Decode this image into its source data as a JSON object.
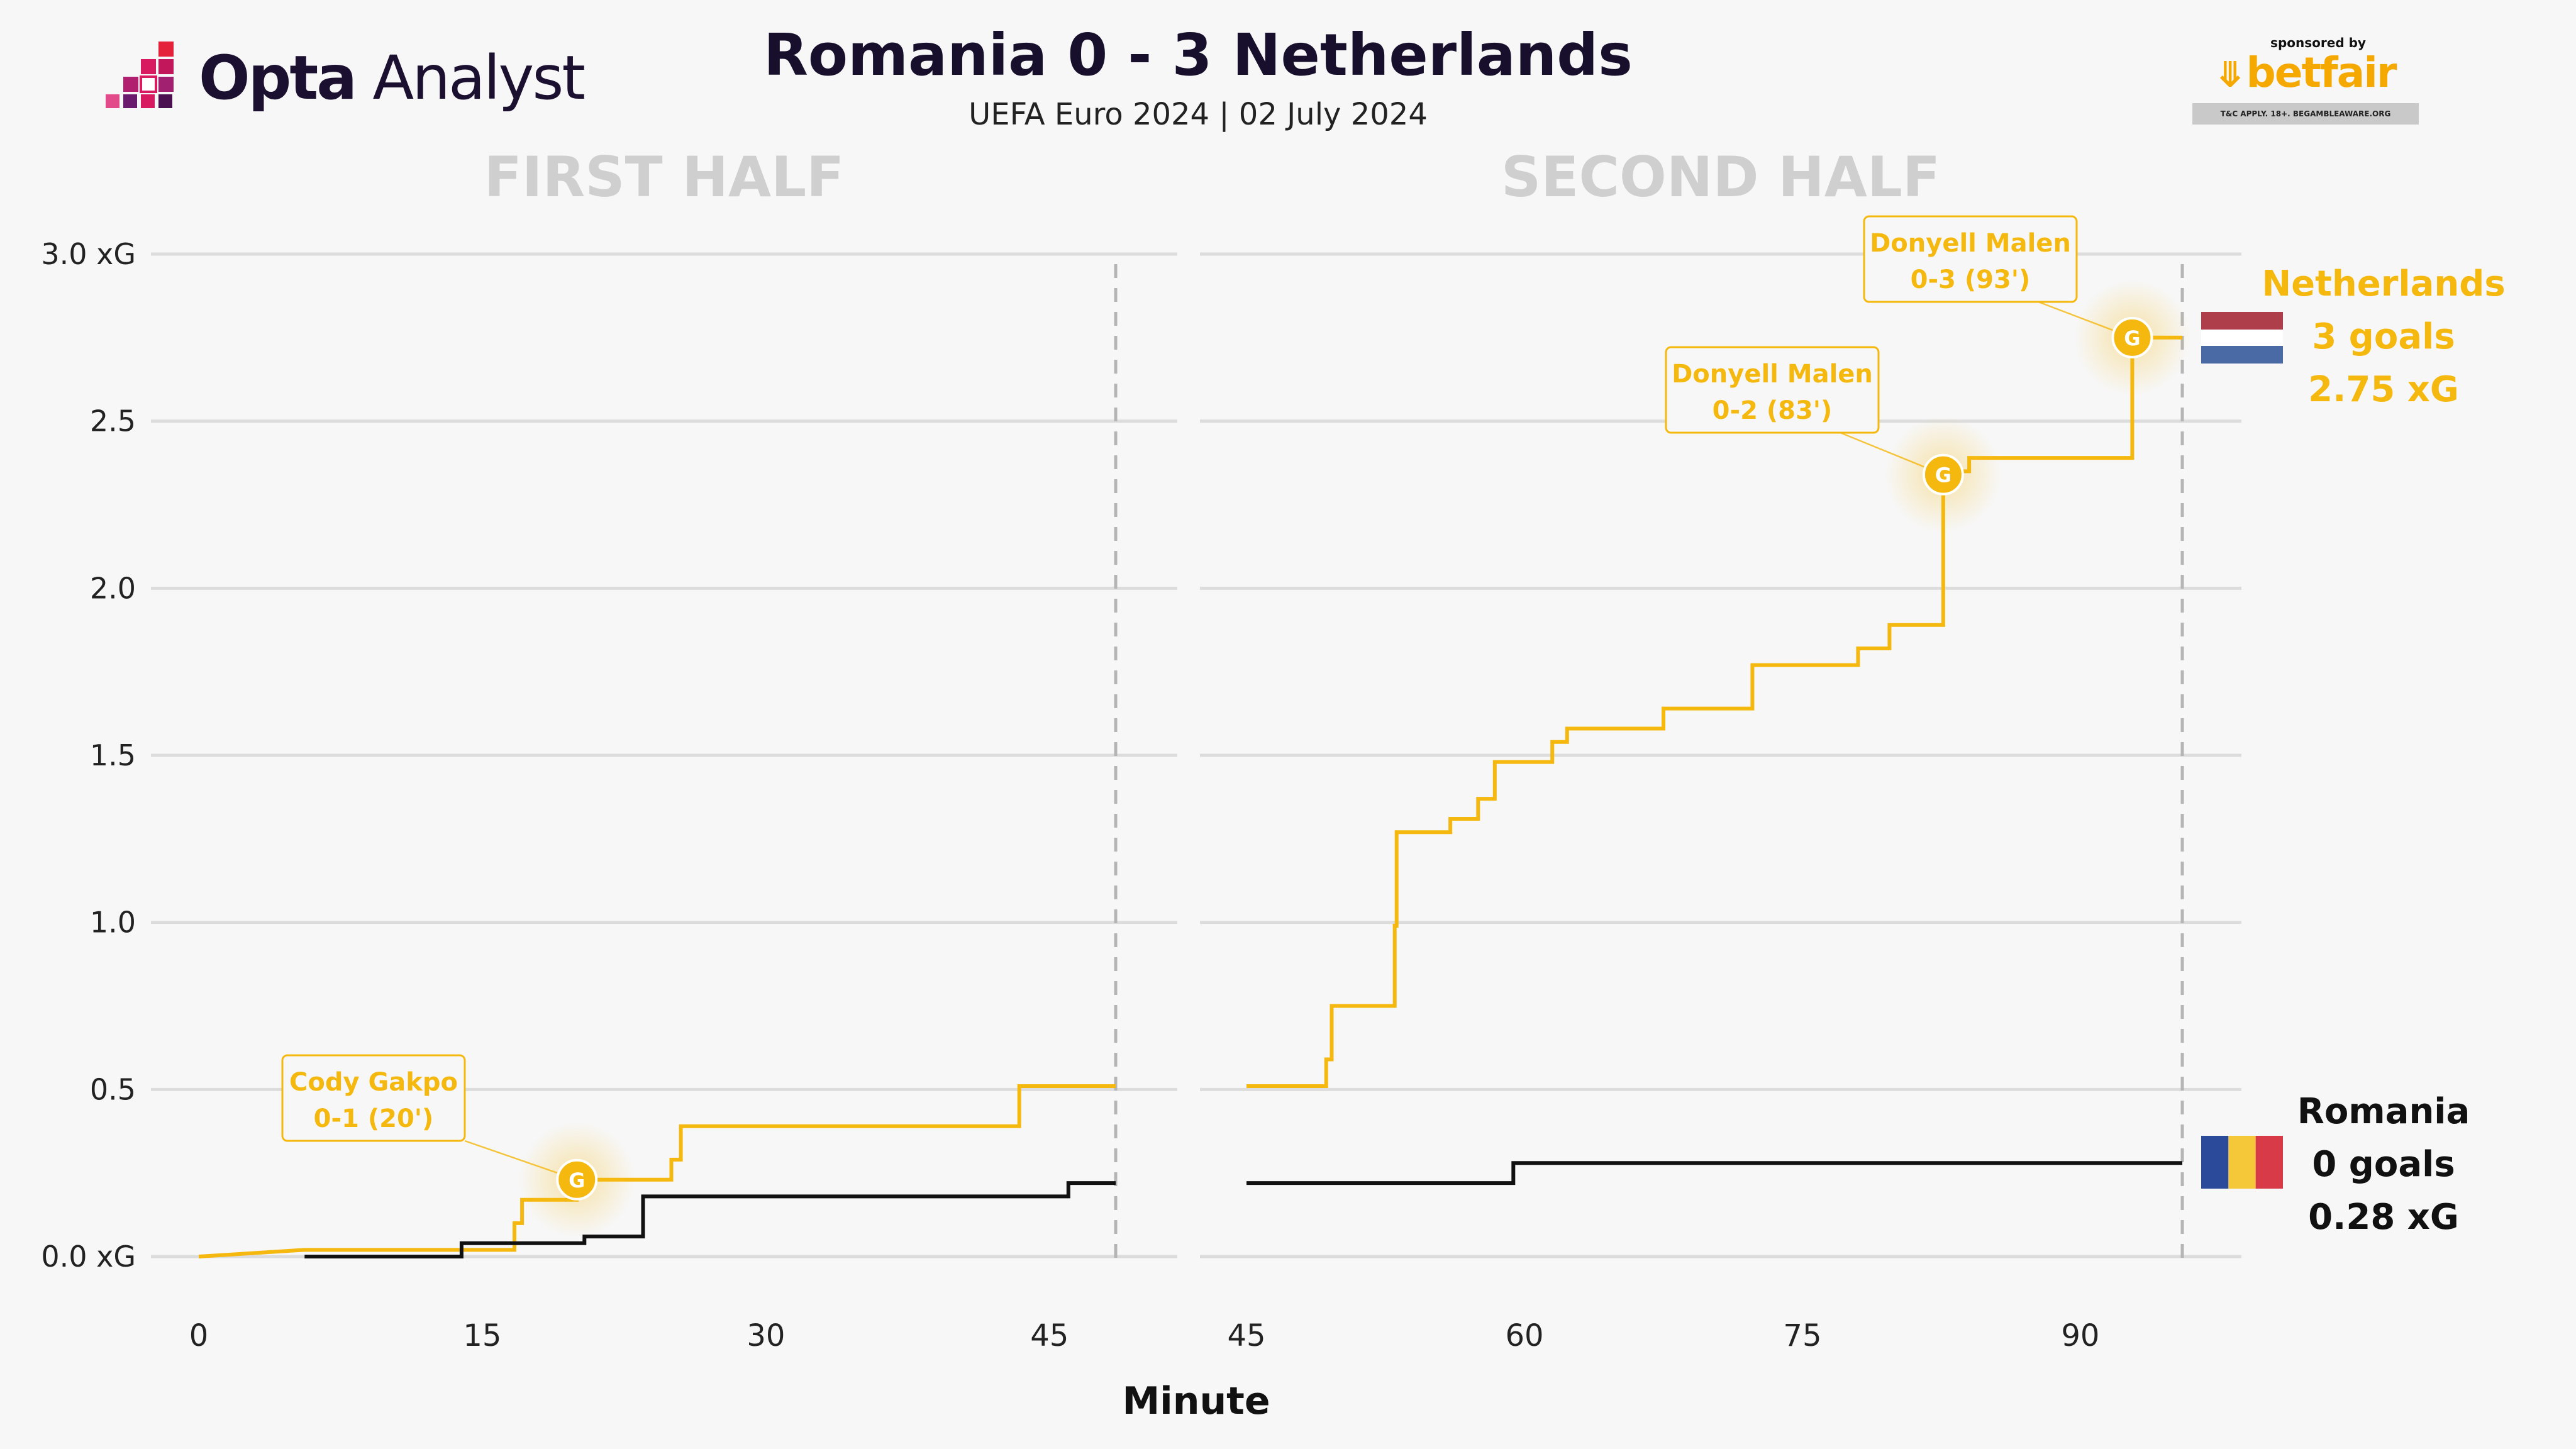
{
  "brand": {
    "name_bold": "Opta",
    "name_regular": "Analyst"
  },
  "header": {
    "title": "Romania 0 - 3 Netherlands",
    "subtitle": "UEFA Euro 2024 | 02 July 2024"
  },
  "sponsor": {
    "small": "sponsored by",
    "name": "betfair",
    "disclaimer": "T&C APPLY. 18+. BEGAMBLEAWARE.ORG"
  },
  "chart_data": {
    "type": "line",
    "step": true,
    "xlabel": "Minute",
    "ylim": [
      0,
      3.0
    ],
    "y_ticks": [
      "0.0 xG",
      "0.5",
      "1.0",
      "1.5",
      "2.0",
      "2.5",
      "3.0 xG"
    ],
    "y_tick_values": [
      0,
      0.5,
      1.0,
      1.5,
      2.0,
      2.5,
      3.0
    ],
    "grid": true,
    "panels": [
      {
        "label": "FIRST HALF",
        "xlim": [
          0,
          48.5
        ],
        "x_ticks": [
          0,
          15,
          30,
          45
        ],
        "end_minute": 48.5
      },
      {
        "label": "SECOND HALF",
        "xlim": [
          45,
          95.5
        ],
        "x_ticks": [
          45,
          60,
          75,
          90
        ],
        "end_minute": 95.5
      }
    ],
    "series": [
      {
        "name": "Netherlands",
        "color": "#f5b80f",
        "points_first_half": [
          [
            0,
            0
          ],
          [
            5.6,
            0.02
          ],
          [
            16.7,
            0.02
          ],
          [
            16.7,
            0.1
          ],
          [
            17.1,
            0.1
          ],
          [
            17.1,
            0.17
          ],
          [
            20,
            0.17
          ],
          [
            20,
            0.23
          ],
          [
            25,
            0.23
          ],
          [
            25,
            0.29
          ],
          [
            25.5,
            0.29
          ],
          [
            25.5,
            0.39
          ],
          [
            43.4,
            0.39
          ],
          [
            43.4,
            0.51
          ],
          [
            48.5,
            0.51
          ]
        ],
        "points_second_half": [
          [
            45,
            0.51
          ],
          [
            49.3,
            0.51
          ],
          [
            49.3,
            0.59
          ],
          [
            49.6,
            0.59
          ],
          [
            49.6,
            0.75
          ],
          [
            53,
            0.75
          ],
          [
            53,
            0.99
          ],
          [
            53.1,
            0.99
          ],
          [
            53.1,
            1.27
          ],
          [
            56,
            1.27
          ],
          [
            56,
            1.31
          ],
          [
            57.5,
            1.31
          ],
          [
            57.5,
            1.37
          ],
          [
            58.4,
            1.37
          ],
          [
            58.4,
            1.48
          ],
          [
            61.5,
            1.48
          ],
          [
            61.5,
            1.54
          ],
          [
            62.3,
            1.54
          ],
          [
            62.3,
            1.58
          ],
          [
            67.5,
            1.58
          ],
          [
            67.5,
            1.64
          ],
          [
            72.3,
            1.64
          ],
          [
            72.3,
            1.77
          ],
          [
            78,
            1.77
          ],
          [
            78,
            1.82
          ],
          [
            79.7,
            1.82
          ],
          [
            79.7,
            1.89
          ],
          [
            82.6,
            1.89
          ],
          [
            82.6,
            2.34
          ],
          [
            83.4,
            2.34
          ],
          [
            83.4,
            2.35
          ],
          [
            84,
            2.35
          ],
          [
            84,
            2.39
          ],
          [
            92.8,
            2.39
          ],
          [
            92.8,
            2.75
          ],
          [
            95.5,
            2.75
          ]
        ],
        "summary": {
          "team": "Netherlands",
          "goals": "3 goals",
          "xg": "2.75 xG"
        }
      },
      {
        "name": "Romania",
        "color": "#111111",
        "points_first_half": [
          [
            5.6,
            0
          ],
          [
            13.9,
            0
          ],
          [
            13.9,
            0.04
          ],
          [
            20.4,
            0.04
          ],
          [
            20.4,
            0.06
          ],
          [
            23.5,
            0.06
          ],
          [
            23.5,
            0.18
          ],
          [
            46,
            0.18
          ],
          [
            46,
            0.22
          ],
          [
            48.5,
            0.22
          ]
        ],
        "points_second_half": [
          [
            45,
            0.22
          ],
          [
            59.4,
            0.22
          ],
          [
            59.4,
            0.28
          ],
          [
            95.5,
            0.28
          ]
        ],
        "summary": {
          "team": "Romania",
          "goals": "0 goals",
          "xg": "0.28 xG"
        }
      }
    ],
    "goals": [
      {
        "team": "Netherlands",
        "panel": 0,
        "minute": 20,
        "xg": 0.23,
        "marker": "G",
        "player": "Cody Gakpo",
        "score": "0-1 (20')"
      },
      {
        "team": "Netherlands",
        "panel": 1,
        "minute": 82.6,
        "xg": 2.34,
        "marker": "G",
        "player": "Donyell Malen",
        "score": "0-2 (83')"
      },
      {
        "team": "Netherlands",
        "panel": 1,
        "minute": 92.8,
        "xg": 2.75,
        "marker": "G",
        "player": "Donyell Malen",
        "score": "0-3 (93')"
      }
    ],
    "colors": {
      "netherlands": "#f5b80f",
      "romania": "#111111",
      "grid": "#dcdcdc",
      "half_label": "#cfcfcf"
    }
  }
}
